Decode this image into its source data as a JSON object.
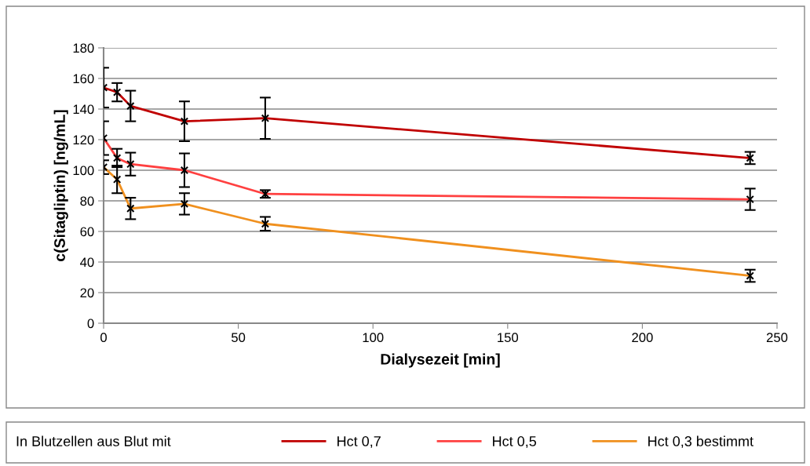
{
  "chart_data": {
    "type": "line",
    "xlabel": "Dialysezeit [min]",
    "ylabel": "c(Sitagliptin) [ng/mL]",
    "legend_title": "In Blutzellen aus Blut mit",
    "x": [
      0,
      5,
      10,
      30,
      60,
      240
    ],
    "series": [
      {
        "name": "Hct 0,7",
        "color": "#c00000",
        "values": [
          154,
          151,
          142,
          132,
          134,
          108
        ],
        "errors": [
          13,
          6,
          10,
          13,
          13.5,
          4
        ]
      },
      {
        "name": "Hct 0,5",
        "color": "#ff4040",
        "values": [
          121,
          108,
          104,
          100,
          84.5,
          81
        ],
        "errors": [
          11,
          6,
          7.5,
          11,
          2.5,
          7
        ]
      },
      {
        "name": "Hct 0,3 bestimmt",
        "color": "#f0901e",
        "values": [
          102,
          94,
          75,
          78,
          65,
          31
        ],
        "errors": [
          4.5,
          9,
          7,
          7,
          4.5,
          4
        ]
      }
    ],
    "xlim": [
      0,
      250
    ],
    "xticks": [
      0,
      50,
      100,
      150,
      200,
      250
    ],
    "ylim": [
      0,
      180
    ],
    "yticks": [
      0,
      20,
      40,
      60,
      80,
      100,
      120,
      140,
      160,
      180
    ],
    "grid": "y",
    "legend": "bottom",
    "marker": "cross",
    "line_style": "solid"
  }
}
